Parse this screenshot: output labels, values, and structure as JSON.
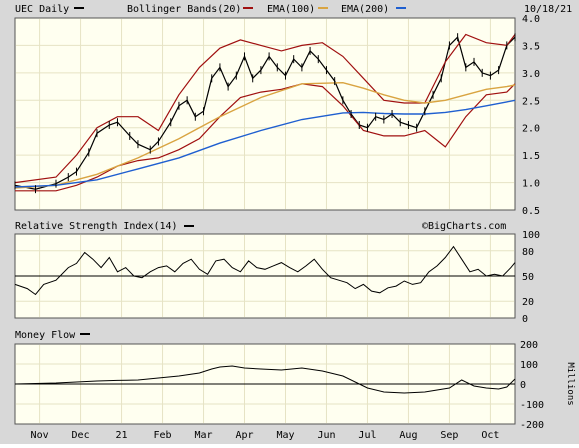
{
  "header": {
    "symbol_label": "UEC Daily",
    "bollinger_label": "Bollinger Bands(20)",
    "ema100_label": "EMA(100)",
    "ema200_label": "EMA(200)",
    "date": "10/18/21"
  },
  "colors": {
    "background": "#d8d8d8",
    "panel_bg": "#fffff0",
    "grid": "#e6e3c4",
    "price": "#000000",
    "bollinger": "#a01010",
    "ema100": "#d9a441",
    "ema200": "#1f5fd0",
    "reference_line": "#000000"
  },
  "chart_data": [
    {
      "type": "line",
      "panel": "price",
      "yticks": [
        0.5,
        1.0,
        1.5,
        2.0,
        2.5,
        3.0,
        3.5,
        4.0
      ],
      "ylim": [
        0.5,
        4.0
      ],
      "x_labels": [
        "Nov",
        "Dec",
        "21",
        "Feb",
        "Mar",
        "Apr",
        "May",
        "Jun",
        "Jul",
        "Aug",
        "Sep",
        "Oct"
      ],
      "x_label_months": [
        0.6,
        1.6,
        2.6,
        3.6,
        4.6,
        5.6,
        6.6,
        7.6,
        8.6,
        9.6,
        10.6,
        11.6
      ],
      "x_range": [
        0.0,
        12.2
      ],
      "series": [
        {
          "name": "UEC Daily",
          "color": "#000000",
          "x": [
            0.0,
            0.5,
            1.0,
            1.3,
            1.5,
            1.8,
            2.0,
            2.3,
            2.5,
            2.8,
            3.0,
            3.3,
            3.5,
            3.8,
            4.0,
            4.2,
            4.4,
            4.6,
            4.8,
            5.0,
            5.2,
            5.4,
            5.6,
            5.8,
            6.0,
            6.2,
            6.4,
            6.6,
            6.8,
            7.0,
            7.2,
            7.4,
            7.6,
            7.8,
            8.0,
            8.2,
            8.4,
            8.6,
            8.8,
            9.0,
            9.2,
            9.4,
            9.6,
            9.8,
            10.0,
            10.2,
            10.4,
            10.6,
            10.8,
            11.0,
            11.2,
            11.4,
            11.6,
            11.8,
            12.0,
            12.2
          ],
          "values": [
            0.95,
            0.88,
            0.98,
            1.1,
            1.2,
            1.55,
            1.9,
            2.05,
            2.1,
            1.85,
            1.7,
            1.6,
            1.75,
            2.1,
            2.4,
            2.5,
            2.2,
            2.3,
            2.9,
            3.1,
            2.75,
            2.95,
            3.3,
            2.9,
            3.05,
            3.3,
            3.1,
            2.95,
            3.25,
            3.1,
            3.4,
            3.25,
            3.05,
            2.85,
            2.5,
            2.25,
            2.05,
            2.0,
            2.2,
            2.15,
            2.25,
            2.1,
            2.05,
            2.0,
            2.3,
            2.6,
            2.9,
            3.5,
            3.65,
            3.1,
            3.2,
            3.0,
            2.95,
            3.05,
            3.5,
            3.65
          ]
        },
        {
          "name": "Bollinger Upper",
          "color": "#a01010",
          "x": [
            0.0,
            1.0,
            1.5,
            2.0,
            2.5,
            3.0,
            3.5,
            4.0,
            4.5,
            5.0,
            5.5,
            6.0,
            6.5,
            7.0,
            7.5,
            8.0,
            8.5,
            9.0,
            9.5,
            10.0,
            10.5,
            11.0,
            11.5,
            12.0,
            12.2
          ],
          "values": [
            1.0,
            1.1,
            1.5,
            2.0,
            2.2,
            2.2,
            1.95,
            2.6,
            3.1,
            3.45,
            3.6,
            3.5,
            3.4,
            3.5,
            3.55,
            3.3,
            2.9,
            2.5,
            2.45,
            2.45,
            3.2,
            3.7,
            3.55,
            3.5,
            3.7
          ]
        },
        {
          "name": "Bollinger Lower",
          "color": "#a01010",
          "x": [
            0.0,
            1.0,
            1.5,
            2.0,
            2.5,
            3.0,
            3.5,
            4.0,
            4.5,
            5.0,
            5.5,
            6.0,
            6.5,
            7.0,
            7.5,
            8.0,
            8.5,
            9.0,
            9.5,
            10.0,
            10.5,
            11.0,
            11.5,
            12.0,
            12.2
          ],
          "values": [
            0.85,
            0.85,
            0.95,
            1.1,
            1.3,
            1.4,
            1.45,
            1.6,
            1.8,
            2.2,
            2.55,
            2.65,
            2.7,
            2.8,
            2.75,
            2.4,
            1.95,
            1.85,
            1.85,
            1.95,
            1.65,
            2.2,
            2.6,
            2.65,
            2.8
          ]
        },
        {
          "name": "EMA(100)",
          "color": "#d9a441",
          "x": [
            0.0,
            1.0,
            2.0,
            3.0,
            4.0,
            5.0,
            6.0,
            7.0,
            8.0,
            8.5,
            9.0,
            9.5,
            10.0,
            10.5,
            11.0,
            11.5,
            12.0,
            12.2
          ],
          "values": [
            0.9,
            0.95,
            1.15,
            1.45,
            1.8,
            2.2,
            2.55,
            2.8,
            2.82,
            2.72,
            2.6,
            2.5,
            2.45,
            2.5,
            2.6,
            2.7,
            2.75,
            2.78
          ]
        },
        {
          "name": "EMA(200)",
          "color": "#1f5fd0",
          "x": [
            0.0,
            1.0,
            2.0,
            3.0,
            4.0,
            5.0,
            6.0,
            7.0,
            8.0,
            8.5,
            9.0,
            9.5,
            10.0,
            10.5,
            11.0,
            11.5,
            12.0,
            12.2
          ],
          "values": [
            0.92,
            0.95,
            1.05,
            1.25,
            1.45,
            1.72,
            1.95,
            2.15,
            2.27,
            2.28,
            2.26,
            2.25,
            2.25,
            2.28,
            2.33,
            2.4,
            2.47,
            2.5
          ]
        }
      ]
    },
    {
      "type": "line",
      "panel": "rsi",
      "title": "Relative Strength Index(14)",
      "watermark": "©BigCharts.com",
      "yticks": [
        0,
        20,
        50,
        80,
        100
      ],
      "ylim": [
        0,
        100
      ],
      "reference": 50,
      "x": [
        0.0,
        0.3,
        0.5,
        0.7,
        1.0,
        1.3,
        1.5,
        1.7,
        1.9,
        2.1,
        2.3,
        2.5,
        2.7,
        2.9,
        3.1,
        3.3,
        3.5,
        3.7,
        3.9,
        4.1,
        4.3,
        4.5,
        4.7,
        4.9,
        5.1,
        5.3,
        5.5,
        5.7,
        5.9,
        6.1,
        6.3,
        6.5,
        6.7,
        6.9,
        7.1,
        7.3,
        7.5,
        7.7,
        7.9,
        8.1,
        8.3,
        8.5,
        8.7,
        8.9,
        9.1,
        9.3,
        9.5,
        9.7,
        9.9,
        10.1,
        10.3,
        10.5,
        10.7,
        10.9,
        11.1,
        11.3,
        11.5,
        11.7,
        11.9,
        12.1,
        12.2
      ],
      "values": [
        40,
        35,
        28,
        40,
        45,
        60,
        65,
        78,
        70,
        60,
        72,
        55,
        60,
        50,
        48,
        55,
        60,
        62,
        55,
        65,
        70,
        58,
        52,
        68,
        70,
        60,
        55,
        68,
        60,
        58,
        62,
        66,
        60,
        55,
        62,
        70,
        58,
        48,
        45,
        42,
        35,
        40,
        32,
        30,
        36,
        38,
        44,
        40,
        42,
        55,
        62,
        72,
        85,
        70,
        55,
        58,
        50,
        52,
        50,
        60,
        66
      ]
    },
    {
      "type": "line",
      "panel": "money_flow",
      "title": "Money Flow",
      "ylabel": "Millions",
      "yticks": [
        -200,
        -100,
        0,
        100,
        200
      ],
      "ylim": [
        -200,
        200
      ],
      "reference": 0,
      "x": [
        0.0,
        1.0,
        1.5,
        2.0,
        2.5,
        3.0,
        3.5,
        4.0,
        4.5,
        4.8,
        5.0,
        5.3,
        5.6,
        6.0,
        6.5,
        7.0,
        7.5,
        8.0,
        8.3,
        8.6,
        9.0,
        9.5,
        10.0,
        10.3,
        10.6,
        10.9,
        11.2,
        11.5,
        11.8,
        12.0,
        12.2
      ],
      "values": [
        0,
        5,
        10,
        15,
        18,
        20,
        30,
        40,
        55,
        75,
        85,
        90,
        80,
        75,
        70,
        80,
        65,
        40,
        10,
        -20,
        -40,
        -45,
        -40,
        -30,
        -20,
        20,
        -10,
        -20,
        -25,
        -15,
        25
      ]
    }
  ]
}
